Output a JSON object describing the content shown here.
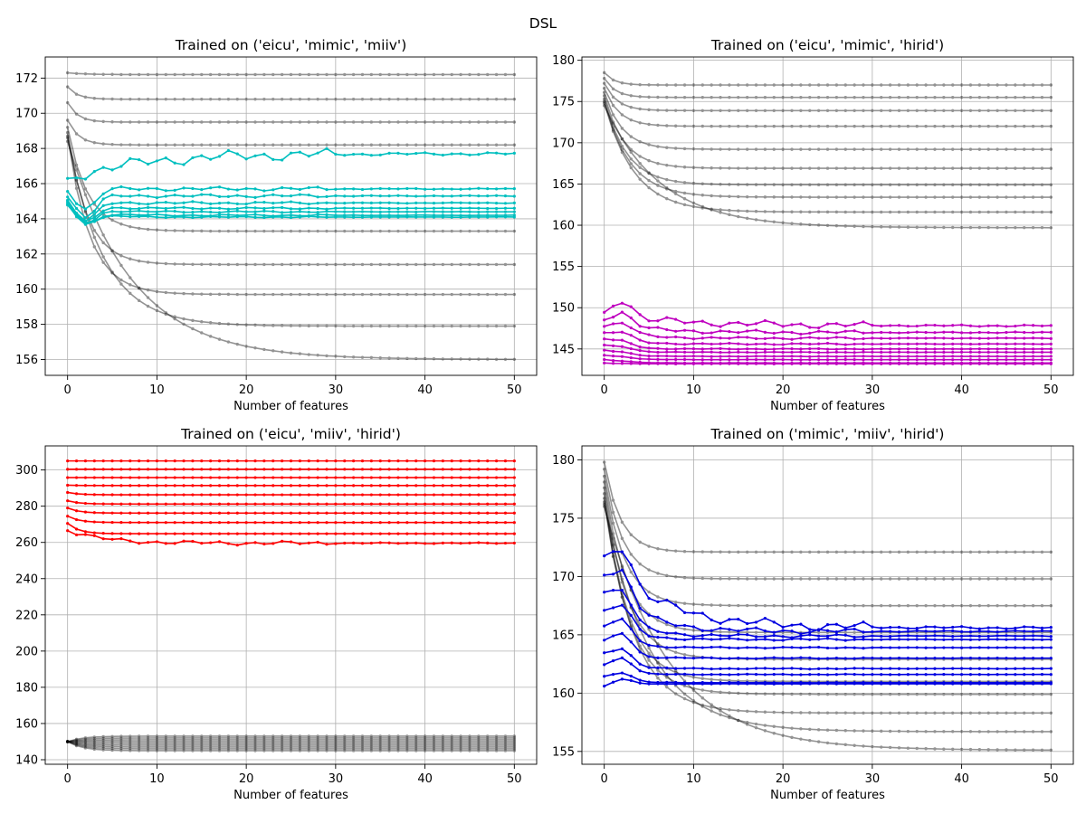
{
  "suptitle": "DSL",
  "chart_data": [
    {
      "type": "line",
      "title": "Trained on ('eicu', 'mimic', 'miiv')",
      "xlabel": "Number of features",
      "ylabel": "",
      "xlim": [
        -2.5,
        52.5
      ],
      "ylim": [
        155.1,
        173.2
      ],
      "xticks": [
        0,
        10,
        20,
        30,
        40,
        50
      ],
      "yticks": [
        156,
        158,
        160,
        162,
        164,
        166,
        168,
        170,
        172
      ],
      "grid": true,
      "n_points": 51,
      "highlight_color": "#00bfbf",
      "background_color": "#000000",
      "background_series": [
        {
          "start": 172.3,
          "final": 172.2,
          "rate": 0.5,
          "noise": 0
        },
        {
          "start": 171.5,
          "final": 170.8,
          "rate": 0.9,
          "noise": 0
        },
        {
          "start": 170.6,
          "final": 169.5,
          "rate": 0.9,
          "noise": 0
        },
        {
          "start": 169.6,
          "final": 168.2,
          "rate": 0.8,
          "noise": 0
        },
        {
          "start": 169.2,
          "final": 163.3,
          "rate": 0.45,
          "noise": 0
        },
        {
          "start": 168.9,
          "final": 161.4,
          "rate": 0.45,
          "noise": 0
        },
        {
          "start": 168.7,
          "final": 159.7,
          "rate": 0.4,
          "noise": 0
        },
        {
          "start": 168.6,
          "final": 157.9,
          "rate": 0.25,
          "noise": 0
        },
        {
          "start": 168.4,
          "final": 156.0,
          "rate": 0.14,
          "noise": 0
        }
      ],
      "highlight_series": [
        {
          "start": 166.3,
          "final": 167.7,
          "rate": 0.12,
          "noise": 0.35,
          "dip": 0
        },
        {
          "start": 165.8,
          "final": 165.7,
          "rate": 0.5,
          "noise": 0.12,
          "dip": 1.2
        },
        {
          "start": 165.5,
          "final": 165.3,
          "rate": 0.5,
          "noise": 0.1,
          "dip": 1.3
        },
        {
          "start": 165.3,
          "final": 164.9,
          "rate": 0.5,
          "noise": 0.08,
          "dip": 1.2
        },
        {
          "start": 165.2,
          "final": 164.6,
          "rate": 0.5,
          "noise": 0.06,
          "dip": 1.0
        },
        {
          "start": 165.1,
          "final": 164.4,
          "rate": 0.5,
          "noise": 0.05,
          "dip": 0.9
        },
        {
          "start": 165.0,
          "final": 164.2,
          "rate": 0.5,
          "noise": 0.05,
          "dip": 0.8
        },
        {
          "start": 164.9,
          "final": 164.1,
          "rate": 0.5,
          "noise": 0.04,
          "dip": 0.6
        }
      ]
    },
    {
      "type": "line",
      "title": "Trained on ('eicu', 'mimic', 'hirid')",
      "xlabel": "Number of features",
      "ylabel": "",
      "xlim": [
        -2.5,
        52.5
      ],
      "ylim": [
        141.8,
        180.4
      ],
      "xticks": [
        0,
        10,
        20,
        30,
        40,
        50
      ],
      "yticks": [
        145,
        150,
        155,
        160,
        165,
        170,
        175,
        180
      ],
      "grid": true,
      "n_points": 51,
      "highlight_color": "#bf00bf",
      "background_color": "#000000",
      "background_series": [
        {
          "start": 178.5,
          "final": 177.0,
          "rate": 0.9,
          "noise": 0
        },
        {
          "start": 177.8,
          "final": 175.5,
          "rate": 0.8,
          "noise": 0
        },
        {
          "start": 177.2,
          "final": 173.9,
          "rate": 0.7,
          "noise": 0
        },
        {
          "start": 176.6,
          "final": 172.0,
          "rate": 0.6,
          "noise": 0
        },
        {
          "start": 176.1,
          "final": 169.2,
          "rate": 0.5,
          "noise": 0
        },
        {
          "start": 175.7,
          "final": 166.9,
          "rate": 0.45,
          "noise": 0
        },
        {
          "start": 175.3,
          "final": 164.9,
          "rate": 0.4,
          "noise": 0
        },
        {
          "start": 175.0,
          "final": 163.4,
          "rate": 0.35,
          "noise": 0
        },
        {
          "start": 174.8,
          "final": 161.6,
          "rate": 0.3,
          "noise": 0
        },
        {
          "start": 174.5,
          "final": 159.7,
          "rate": 0.16,
          "noise": 0
        }
      ],
      "highlight_series": [
        {
          "start": 149.0,
          "final": 147.8,
          "rate": 0.1,
          "noise": 0.45,
          "dip": -2.2
        },
        {
          "start": 148.2,
          "final": 147.0,
          "rate": 0.2,
          "noise": 0.25,
          "dip": -1.6
        },
        {
          "start": 147.5,
          "final": 146.3,
          "rate": 0.3,
          "noise": 0.15,
          "dip": -1.2
        },
        {
          "start": 146.8,
          "final": 145.6,
          "rate": 0.4,
          "noise": 0.1,
          "dip": -0.9
        },
        {
          "start": 146.1,
          "final": 145.0,
          "rate": 0.5,
          "noise": 0.06,
          "dip": -0.6
        },
        {
          "start": 145.4,
          "final": 144.6,
          "rate": 0.5,
          "noise": 0.04,
          "dip": -0.4
        },
        {
          "start": 144.8,
          "final": 144.1,
          "rate": 0.5,
          "noise": 0.03,
          "dip": -0.3
        },
        {
          "start": 144.2,
          "final": 143.7,
          "rate": 0.5,
          "noise": 0.02,
          "dip": -0.2
        },
        {
          "start": 143.7,
          "final": 143.3,
          "rate": 0.5,
          "noise": 0.02,
          "dip": -0.1
        },
        {
          "start": 143.3,
          "final": 143.2,
          "rate": 0.5,
          "noise": 0.01,
          "dip": 0
        }
      ]
    },
    {
      "type": "line",
      "title": "Trained on ('eicu', 'miiv', 'hirid')",
      "xlabel": "Number of features",
      "ylabel": "",
      "xlim": [
        -2.5,
        52.5
      ],
      "ylim": [
        137.5,
        313.3
      ],
      "xticks": [
        0,
        10,
        20,
        30,
        40,
        50
      ],
      "yticks": [
        140,
        160,
        180,
        200,
        220,
        240,
        260,
        280,
        300
      ],
      "grid": true,
      "n_points": 51,
      "highlight_color": "#ff0000",
      "background_color": "#000000",
      "background_series": [
        {
          "start": 150.0,
          "final": 153.0,
          "rate": 0.6,
          "noise": 0
        },
        {
          "start": 150.0,
          "final": 152.0,
          "rate": 0.6,
          "noise": 0
        },
        {
          "start": 150.0,
          "final": 151.0,
          "rate": 0.6,
          "noise": 0
        },
        {
          "start": 150.0,
          "final": 150.0,
          "rate": 0.6,
          "noise": 0
        },
        {
          "start": 150.0,
          "final": 149.0,
          "rate": 0.6,
          "noise": 0
        },
        {
          "start": 150.0,
          "final": 148.0,
          "rate": 0.6,
          "noise": 0
        },
        {
          "start": 150.0,
          "final": 147.0,
          "rate": 0.6,
          "noise": 0
        },
        {
          "start": 150.0,
          "final": 146.0,
          "rate": 0.6,
          "noise": 0
        },
        {
          "start": 150.0,
          "final": 145.0,
          "rate": 0.6,
          "noise": 0
        }
      ],
      "highlight_series": [
        {
          "start": 305.0,
          "final": 305.0,
          "rate": 0.8,
          "noise": 0,
          "dip": 0
        },
        {
          "start": 300.4,
          "final": 300.4,
          "rate": 0.8,
          "noise": 0,
          "dip": 0
        },
        {
          "start": 295.8,
          "final": 295.8,
          "rate": 0.8,
          "noise": 0,
          "dip": 0
        },
        {
          "start": 291.6,
          "final": 291.4,
          "rate": 0.8,
          "noise": 0,
          "dip": 0
        },
        {
          "start": 287.6,
          "final": 286.3,
          "rate": 0.8,
          "noise": 0,
          "dip": 0
        },
        {
          "start": 283.0,
          "final": 281.2,
          "rate": 0.8,
          "noise": 0,
          "dip": 0
        },
        {
          "start": 279.0,
          "final": 276.2,
          "rate": 0.8,
          "noise": 0,
          "dip": 0
        },
        {
          "start": 274.5,
          "final": 271.0,
          "rate": 0.8,
          "noise": 0,
          "dip": 0
        },
        {
          "start": 270.5,
          "final": 264.8,
          "rate": 0.8,
          "noise": 0,
          "dip": 0
        },
        {
          "start": 266.5,
          "final": 259.6,
          "rate": 0.25,
          "noise": 1.2,
          "dip": 0
        }
      ]
    },
    {
      "type": "line",
      "title": "Trained on ('mimic', 'miiv', 'hirid')",
      "xlabel": "Number of features",
      "ylabel": "",
      "xlim": [
        -2.5,
        52.5
      ],
      "ylim": [
        153.9,
        181.2
      ],
      "xticks": [
        0,
        10,
        20,
        30,
        40,
        50
      ],
      "yticks": [
        155,
        160,
        165,
        170,
        175,
        180
      ],
      "grid": true,
      "n_points": 51,
      "highlight_color": "#0000e0",
      "background_color": "#000000",
      "background_series": [
        {
          "start": 179.8,
          "final": 172.1,
          "rate": 0.55,
          "noise": 0
        },
        {
          "start": 179.2,
          "final": 169.8,
          "rate": 0.5,
          "noise": 0
        },
        {
          "start": 178.6,
          "final": 167.5,
          "rate": 0.45,
          "noise": 0
        },
        {
          "start": 178.1,
          "final": 165.2,
          "rate": 0.42,
          "noise": 0
        },
        {
          "start": 177.6,
          "final": 162.9,
          "rate": 0.4,
          "noise": 0
        },
        {
          "start": 177.1,
          "final": 161.0,
          "rate": 0.38,
          "noise": 0
        },
        {
          "start": 176.7,
          "final": 159.9,
          "rate": 0.35,
          "noise": 0
        },
        {
          "start": 176.4,
          "final": 158.3,
          "rate": 0.3,
          "noise": 0
        },
        {
          "start": 176.2,
          "final": 156.7,
          "rate": 0.2,
          "noise": 0
        },
        {
          "start": 176.0,
          "final": 155.1,
          "rate": 0.14,
          "noise": 0
        }
      ],
      "highlight_series": [
        {
          "start": 171.2,
          "final": 165.6,
          "rate": 0.15,
          "noise": 0.45,
          "dip": -2.8
        },
        {
          "start": 169.6,
          "final": 165.3,
          "rate": 0.25,
          "noise": 0.25,
          "dip": -2.6
        },
        {
          "start": 168.2,
          "final": 164.9,
          "rate": 0.35,
          "noise": 0.15,
          "dip": -2.3
        },
        {
          "start": 166.7,
          "final": 164.6,
          "rate": 0.4,
          "noise": 0.1,
          "dip": -2.0
        },
        {
          "start": 165.4,
          "final": 163.9,
          "rate": 0.45,
          "noise": 0.06,
          "dip": -1.8
        },
        {
          "start": 164.2,
          "final": 163.0,
          "rate": 0.5,
          "noise": 0.05,
          "dip": -1.7
        },
        {
          "start": 163.2,
          "final": 162.1,
          "rate": 0.5,
          "noise": 0.04,
          "dip": -1.3
        },
        {
          "start": 162.2,
          "final": 161.6,
          "rate": 0.5,
          "noise": 0.03,
          "dip": -1.2
        },
        {
          "start": 161.3,
          "final": 160.9,
          "rate": 0.5,
          "noise": 0.02,
          "dip": -0.7
        },
        {
          "start": 160.5,
          "final": 160.8,
          "rate": 0.5,
          "noise": 0.02,
          "dip": -0.5
        }
      ]
    }
  ]
}
